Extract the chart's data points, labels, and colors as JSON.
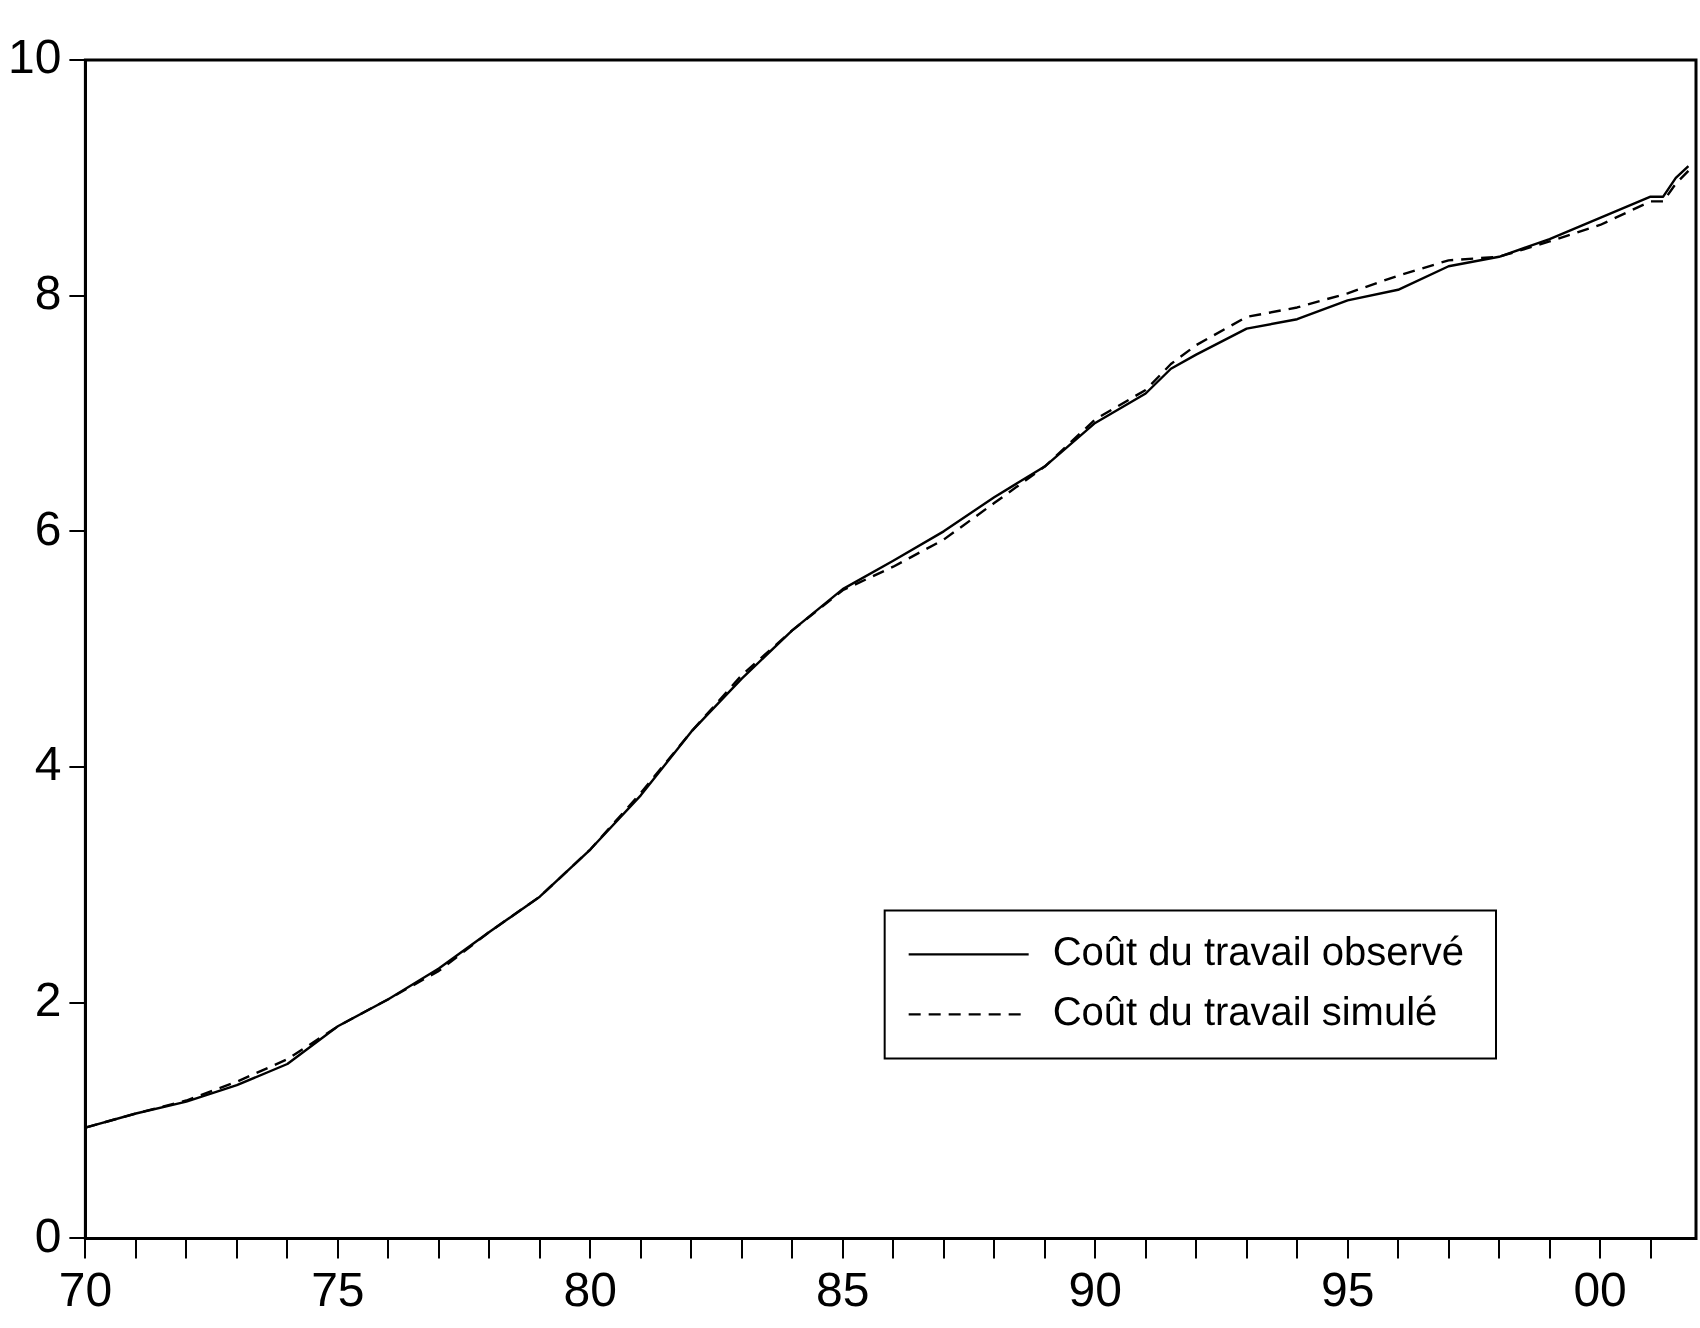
{
  "chart_data": {
    "type": "line",
    "xlim": [
      1970,
      2001.9
    ],
    "ylim": [
      0,
      10
    ],
    "yticks": [
      0,
      2,
      4,
      6,
      8,
      10
    ],
    "xticks": [
      {
        "value": 1970,
        "label": "70"
      },
      {
        "value": 1971,
        "label": null
      },
      {
        "value": 1972,
        "label": null
      },
      {
        "value": 1973,
        "label": null
      },
      {
        "value": 1974,
        "label": null
      },
      {
        "value": 1975,
        "label": "75"
      },
      {
        "value": 1976,
        "label": null
      },
      {
        "value": 1977,
        "label": null
      },
      {
        "value": 1978,
        "label": null
      },
      {
        "value": 1979,
        "label": null
      },
      {
        "value": 1980,
        "label": "80"
      },
      {
        "value": 1981,
        "label": null
      },
      {
        "value": 1982,
        "label": null
      },
      {
        "value": 1983,
        "label": null
      },
      {
        "value": 1984,
        "label": null
      },
      {
        "value": 1985,
        "label": "85"
      },
      {
        "value": 1986,
        "label": null
      },
      {
        "value": 1987,
        "label": null
      },
      {
        "value": 1988,
        "label": null
      },
      {
        "value": 1989,
        "label": null
      },
      {
        "value": 1990,
        "label": "90"
      },
      {
        "value": 1991,
        "label": null
      },
      {
        "value": 1992,
        "label": null
      },
      {
        "value": 1993,
        "label": null
      },
      {
        "value": 1994,
        "label": null
      },
      {
        "value": 1995,
        "label": "95"
      },
      {
        "value": 1996,
        "label": null
      },
      {
        "value": 1997,
        "label": null
      },
      {
        "value": 1998,
        "label": null
      },
      {
        "value": 1999,
        "label": null
      },
      {
        "value": 2000,
        "label": "00"
      },
      {
        "value": 2001,
        "label": null
      }
    ],
    "x": [
      1970,
      1971,
      1972,
      1973,
      1974,
      1975,
      1976,
      1977,
      1978,
      1979,
      1980,
      1981,
      1982,
      1983,
      1984,
      1985,
      1986,
      1987,
      1988,
      1989,
      1990,
      1991,
      1991.5,
      1992,
      1993,
      1994,
      1995,
      1996,
      1997,
      1998,
      1999,
      2000,
      2001,
      2001.25,
      2001.5,
      2001.75
    ],
    "series": [
      {
        "name": "Coût du travail observé",
        "color": "#000000",
        "line_style": "solid",
        "values": [
          0.94,
          1.06,
          1.16,
          1.3,
          1.48,
          1.8,
          2.03,
          2.29,
          2.6,
          2.9,
          3.3,
          3.76,
          4.3,
          4.75,
          5.16,
          5.51,
          5.75,
          6.0,
          6.29,
          6.55,
          6.92,
          7.17,
          7.38,
          7.5,
          7.72,
          7.8,
          7.96,
          8.05,
          8.25,
          8.33,
          8.48,
          8.66,
          8.84,
          8.84,
          9.0,
          9.1
        ]
      },
      {
        "name": "Coût du travail simulé",
        "color": "#000000",
        "line_style": "dashed",
        "values": [
          0.94,
          1.06,
          1.17,
          1.33,
          1.52,
          1.8,
          2.03,
          2.27,
          2.6,
          2.9,
          3.3,
          3.78,
          4.3,
          4.78,
          5.16,
          5.5,
          5.7,
          5.93,
          6.24,
          6.55,
          6.95,
          7.2,
          7.42,
          7.58,
          7.82,
          7.9,
          8.02,
          8.17,
          8.3,
          8.33,
          8.46,
          8.6,
          8.8,
          8.8,
          8.95,
          9.06
        ]
      }
    ],
    "grid": false,
    "legend": "bottom right",
    "marker": "none"
  }
}
